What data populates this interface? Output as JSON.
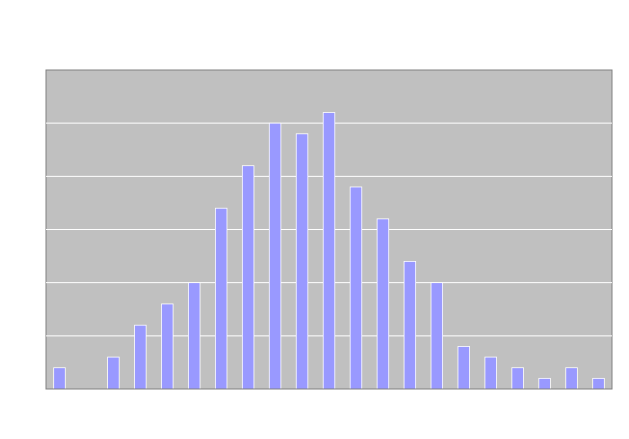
{
  "chart_data": {
    "type": "bar",
    "title": "",
    "xlabel": "",
    "ylabel": "",
    "ylim": [
      0,
      30
    ],
    "grid": true,
    "legend": "none",
    "series": [
      {
        "values": [
          2,
          0,
          3,
          6,
          8,
          10,
          17,
          21,
          25,
          24,
          26,
          19,
          16,
          12,
          10,
          4,
          3,
          2,
          1,
          2,
          1
        ]
      }
    ],
    "colors": {
      "plot_background": "#c0c0c0",
      "bar_fill": "#9999ff",
      "bar_edge": "#ffffff",
      "gridline": "#ffffff",
      "axis_line": "#808080"
    }
  }
}
